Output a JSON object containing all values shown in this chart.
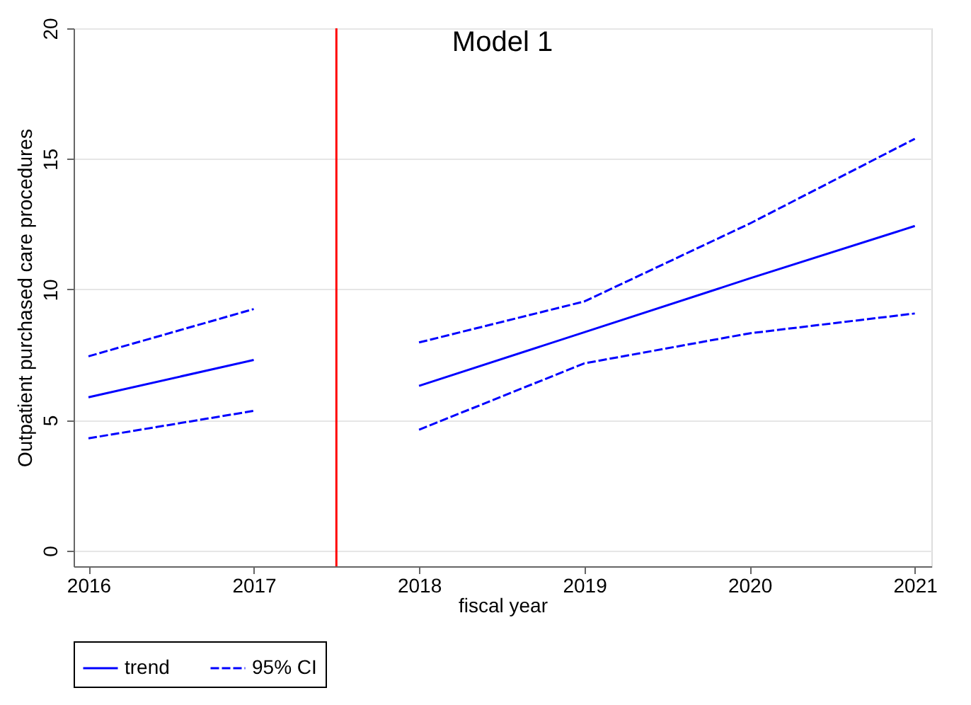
{
  "chart_data": {
    "type": "line",
    "title": "Model 1",
    "xlabel": "fiscal year",
    "ylabel": "Outpatient purchased care procedures",
    "series": [
      {
        "name": "trend",
        "color": "#0000ff",
        "line_style": "solid",
        "x": [
          2016,
          2017
        ],
        "values": [
          5.87,
          7.3
        ]
      },
      {
        "color": "#0000ff",
        "line_style": "solid",
        "x": [
          2018,
          2019,
          2020,
          2021
        ],
        "values": [
          6.31,
          8.36,
          10.42,
          12.43
        ]
      },
      {
        "name": "95% CI",
        "color": "#0000ff",
        "line_style": "dashed",
        "x": [
          2016,
          2017
        ],
        "values": [
          7.44,
          9.25
        ]
      },
      {
        "color": "#0000ff",
        "line_style": "dashed",
        "x": [
          2018,
          2019,
          2020,
          2021
        ],
        "values": [
          7.97,
          9.54,
          12.52,
          15.77
        ]
      },
      {
        "color": "#0000ff",
        "line_style": "dashed",
        "x": [
          2016,
          2017
        ],
        "values": [
          4.3,
          5.35
        ]
      },
      {
        "color": "#0000ff",
        "line_style": "dashed",
        "x": [
          2018,
          2019,
          2020,
          2021
        ],
        "values": [
          4.63,
          7.17,
          8.32,
          9.08
        ]
      }
    ],
    "xlim": [
      2015.91,
      2021.1
    ],
    "xticks": [
      2016,
      2017,
      2018,
      2019,
      2020,
      2021
    ],
    "ylim": [
      -0.6,
      20
    ],
    "yticks": [
      0,
      5,
      10,
      15,
      20
    ],
    "ref_lines": [
      {
        "axis": "x",
        "value": 2017.5,
        "color": "#ff0000"
      }
    ],
    "grid": "y",
    "legend": "bottom"
  }
}
